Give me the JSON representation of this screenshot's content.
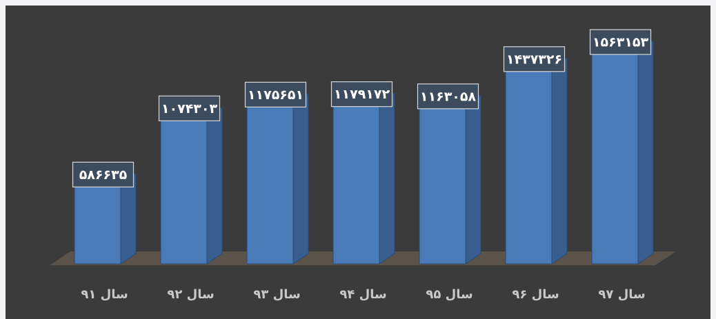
{
  "chart_data": {
    "type": "bar3d",
    "categories": [
      "سال ۹۱",
      "سال ۹۲",
      "سال ۹۳",
      "سال ۹۴",
      "سال ۹۵",
      "سال ۹۶",
      "سال ۹۷"
    ],
    "values": [
      586635,
      1074303,
      1175651,
      1179172,
      1163058,
      1437326,
      1563153
    ],
    "value_labels": [
      "۵۸۶۶۳۵",
      "۱۰۷۴۳۰۳",
      "۱۱۷۵۶۵۱",
      "۱۱۷۹۱۷۲",
      "۱۱۶۳۰۵۸",
      "۱۴۳۷۳۲۶",
      "۱۵۶۳۱۵۳"
    ],
    "color": "#4a7bb9"
  }
}
